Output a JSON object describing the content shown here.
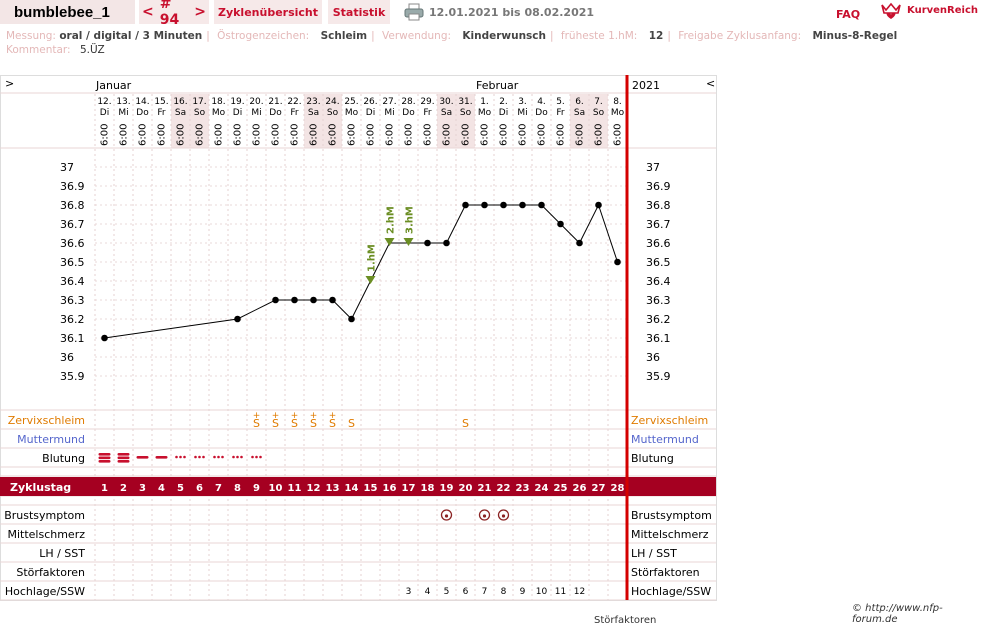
{
  "header": {
    "title": "bumblebee_1",
    "nav_prev": "<",
    "nav_label": "# 94",
    "nav_next": ">",
    "tab_zyklen": "Zyklenübersicht",
    "tab_statistik": "Statistik",
    "date_range": "12.01.2021 bis 08.02.2021",
    "faq": "FAQ",
    "logo_text": "KurvenReich",
    "printer_icon": "printer-icon",
    "logo_icon": "crown-heart-icon"
  },
  "meta": {
    "messung_label": "Messung:",
    "messung": "oral / digital / 3 Minuten",
    "oestrogen_label": "Östrogenzeichen:",
    "oestrogen": "Schleim",
    "verwendung_label": "Verwendung:",
    "verwendung": "Kinderwunsch",
    "hm_label": "früheste 1.hM:",
    "hm": "12",
    "freigabe_label": "Freigabe Zyklusanfang:",
    "freigabe": "Minus-8-Regel",
    "kommentar_label": "Kommentar:",
    "kommentar": "5.ÜZ"
  },
  "chart_data": {
    "type": "line",
    "months": [
      "Januar",
      "Februar"
    ],
    "year": "2021",
    "expand_left": ">",
    "expand_right": "<",
    "days": [
      "12.",
      "13.",
      "14.",
      "15.",
      "16.",
      "17.",
      "18.",
      "19.",
      "20.",
      "21.",
      "22.",
      "23.",
      "24.",
      "25.",
      "26.",
      "27.",
      "28.",
      "29.",
      "30.",
      "31.",
      "1.",
      "2.",
      "3.",
      "4.",
      "5.",
      "6.",
      "7.",
      "8."
    ],
    "weekdays": [
      "Di",
      "Mi",
      "Do",
      "Fr",
      "Sa",
      "So",
      "Mo",
      "Di",
      "Mi",
      "Do",
      "Fr",
      "Sa",
      "So",
      "Mo",
      "Di",
      "Mi",
      "Do",
      "Fr",
      "Sa",
      "So",
      "Mo",
      "Di",
      "Mi",
      "Do",
      "Fr",
      "Sa",
      "So",
      "Mo"
    ],
    "weekend_shade": [
      false,
      false,
      false,
      false,
      true,
      true,
      false,
      false,
      false,
      false,
      false,
      true,
      true,
      false,
      false,
      false,
      false,
      false,
      true,
      true,
      false,
      false,
      false,
      false,
      false,
      true,
      true,
      false
    ],
    "time": "6:00",
    "ylim": [
      35.8,
      37.05
    ],
    "yticks": [
      "37",
      "36.9",
      "36.8",
      "36.7",
      "36.6",
      "36.5",
      "36.4",
      "36.3",
      "36.2",
      "36.1",
      "36",
      "35.9"
    ],
    "temps": [
      36.1,
      null,
      null,
      null,
      null,
      null,
      null,
      36.2,
      null,
      36.3,
      36.3,
      36.3,
      36.3,
      36.2,
      36.4,
      36.6,
      36.6,
      36.6,
      36.6,
      36.8,
      36.8,
      36.8,
      36.8,
      36.8,
      36.7,
      36.6,
      36.8,
      36.5
    ],
    "hm_markers": [
      {
        "day": 15,
        "label": "1.hM"
      },
      {
        "day": 16,
        "label": "2.hM"
      },
      {
        "day": 17,
        "label": "3.hM"
      }
    ],
    "zervix_label": "Zervixschleim",
    "zervix": [
      "",
      "",
      "",
      "",
      "",
      "",
      "",
      "",
      "S+",
      "S+",
      "S+",
      "S+",
      "S+",
      "S",
      "",
      "",
      "",
      "",
      "",
      "S",
      "",
      "",
      "",
      "",
      "",
      "",
      "",
      ""
    ],
    "muttermund_label": "Muttermund",
    "blutung_label": "Blutung",
    "blutung": [
      "heavy",
      "heavy",
      "medium",
      "medium",
      "light",
      "light",
      "light",
      "light",
      "light",
      "",
      "",
      "",
      "",
      "",
      "",
      "",
      "",
      "",
      "",
      "",
      "",
      "",
      "",
      "",
      "",
      "",
      "",
      ""
    ],
    "zyklustag_label": "Zyklustag",
    "zyklustag": [
      "1",
      "2",
      "3",
      "4",
      "5",
      "6",
      "7",
      "8",
      "9",
      "10",
      "11",
      "12",
      "13",
      "14",
      "15",
      "16",
      "17",
      "18",
      "19",
      "20",
      "21",
      "22",
      "23",
      "24",
      "25",
      "26",
      "27",
      "28"
    ],
    "brust_label": "Brustsymptom",
    "brust": [
      false,
      false,
      false,
      false,
      false,
      false,
      false,
      false,
      false,
      false,
      false,
      false,
      false,
      false,
      false,
      false,
      false,
      false,
      true,
      false,
      true,
      true,
      false,
      false,
      false,
      false,
      false,
      false
    ],
    "mittel_label": "Mittelschmerz",
    "lh_label": "LH / SST",
    "stoer_label": "Störfaktoren",
    "hoch_label": "Hochlage/SSW",
    "hochlage": [
      "",
      "",
      "",
      "",
      "",
      "",
      "",
      "",
      "",
      "",
      "",
      "",
      "",
      "",
      "",
      "",
      "3",
      "4",
      "5",
      "6",
      "7",
      "8",
      "9",
      "10",
      "11",
      "12",
      "",
      ""
    ],
    "colors": {
      "accent": "#c8102e",
      "band": "#a50021",
      "zervix": "#e07b00",
      "muttermund": "#5566cc",
      "hm": "#6b8e23"
    }
  },
  "footer": {
    "copyright": "© http://www.nfp-forum.de",
    "clipped": "Störfaktoren"
  }
}
